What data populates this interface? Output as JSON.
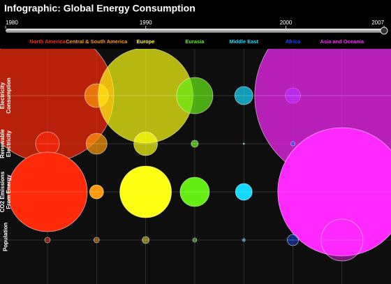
{
  "chart_data": {
    "type": "bubble-matrix",
    "title": "Infographic: Global Energy Consumption",
    "timeline": {
      "xlim": [
        1980,
        2007
      ],
      "xticks": [
        1980,
        1990,
        2000,
        2007
      ],
      "value": 2007
    },
    "categories": [
      "North America",
      "Central & South America",
      "Europe",
      "Eurasia",
      "Middle East",
      "Africa",
      "Asia and Oceania"
    ],
    "colors": [
      "#ff2a0a",
      "#ff9a0a",
      "#ffff14",
      "#66ee14",
      "#14d8ff",
      "#1448ff",
      "#ff28ff"
    ],
    "series": [
      {
        "name": "Electricity Consumption",
        "opacity": 0.7,
        "values": [
          95,
          17,
          68,
          26,
          13,
          11,
          125
        ]
      },
      {
        "name": "Renewable Electricity",
        "opacity": 0.7,
        "values": [
          17,
          15,
          17,
          5,
          1,
          3,
          18
        ]
      },
      {
        "name": "CO2 Emissions From Energy",
        "opacity": 1,
        "values": [
          57,
          10,
          37,
          21,
          12,
          9,
          92
        ]
      },
      {
        "name": "Population",
        "opacity": 0.45,
        "values": [
          4,
          4,
          5,
          3,
          2,
          8,
          30
        ]
      }
    ],
    "grid": true
  }
}
